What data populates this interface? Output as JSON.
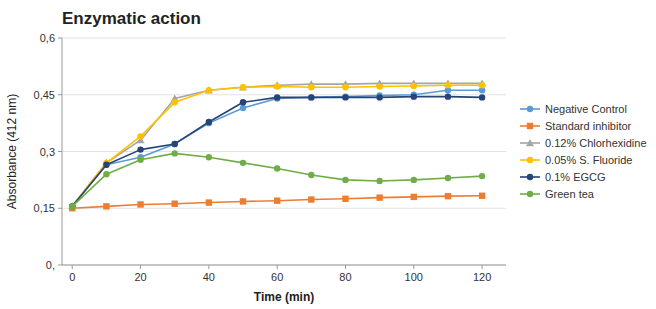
{
  "chart_data": {
    "type": "line",
    "title": "Enzymatic action",
    "x_label": "Time (min)",
    "y_label": "Absorbance (412 nm)",
    "x": [
      0,
      10,
      20,
      30,
      40,
      50,
      60,
      70,
      80,
      90,
      100,
      110,
      120
    ],
    "series": [
      {
        "name": "Negative Control",
        "color": "#5B9BD5",
        "marker": "circle",
        "values": [
          0.155,
          0.265,
          0.285,
          0.32,
          0.375,
          0.415,
          0.44,
          0.443,
          0.445,
          0.448,
          0.45,
          0.462,
          0.462
        ]
      },
      {
        "name": "Standard inhibitor",
        "color": "#ED7D31",
        "marker": "square",
        "values": [
          0.15,
          0.155,
          0.16,
          0.162,
          0.165,
          0.168,
          0.17,
          0.173,
          0.175,
          0.178,
          0.18,
          0.182,
          0.183
        ]
      },
      {
        "name": "0.12% Chlorhexidine",
        "color": "#A5A5A5",
        "marker": "triangle",
        "values": [
          0.155,
          0.27,
          0.33,
          0.44,
          0.462,
          0.47,
          0.475,
          0.478,
          0.478,
          0.48,
          0.48,
          0.48,
          0.48
        ]
      },
      {
        "name": "0.05% S. Fluoride",
        "color": "#FFC000",
        "marker": "circle",
        "values": [
          0.155,
          0.27,
          0.34,
          0.43,
          0.462,
          0.47,
          0.472,
          0.47,
          0.47,
          0.472,
          0.473,
          0.475,
          0.475
        ]
      },
      {
        "name": "0.1% EGCG",
        "color": "#264478",
        "marker": "circle",
        "values": [
          0.155,
          0.265,
          0.305,
          0.32,
          0.378,
          0.43,
          0.443,
          0.443,
          0.443,
          0.443,
          0.445,
          0.445,
          0.443
        ]
      },
      {
        "name": "Green tea",
        "color": "#70AD47",
        "marker": "circle",
        "values": [
          0.155,
          0.24,
          0.278,
          0.295,
          0.285,
          0.27,
          0.255,
          0.238,
          0.225,
          0.222,
          0.225,
          0.23,
          0.235
        ]
      }
    ],
    "xlim": [
      -3,
      127
    ],
    "xticks": [
      0,
      20,
      40,
      60,
      80,
      100,
      120
    ],
    "ylim": [
      0,
      0.6
    ],
    "yticks": [
      {
        "value": 0.0,
        "label": "0,"
      },
      {
        "value": 0.15,
        "label": "0,15"
      },
      {
        "value": 0.3,
        "label": "0,3"
      },
      {
        "value": 0.45,
        "label": "0,45"
      },
      {
        "value": 0.6,
        "label": "0,6"
      }
    ],
    "grid": true,
    "legend": "right"
  }
}
